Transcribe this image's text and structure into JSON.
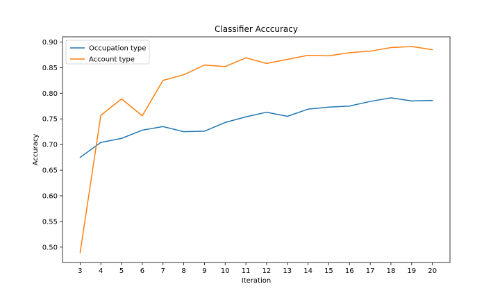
{
  "chart_data": {
    "type": "line",
    "title": "Classifier Acccuracy",
    "xlabel": "Iteration",
    "ylabel": "Accuracy",
    "x": [
      3,
      4,
      5,
      6,
      7,
      8,
      9,
      10,
      11,
      12,
      13,
      14,
      15,
      16,
      17,
      18,
      19,
      20
    ],
    "xlim": [
      2.15,
      20.85
    ],
    "ylim": [
      0.47,
      0.91
    ],
    "xticks": [
      3,
      4,
      5,
      6,
      7,
      8,
      9,
      10,
      11,
      12,
      13,
      14,
      15,
      16,
      17,
      18,
      19,
      20
    ],
    "yticks": [
      0.5,
      0.55,
      0.6,
      0.65,
      0.7,
      0.75,
      0.8,
      0.85,
      0.9
    ],
    "grid": false,
    "legend_position": "top-left",
    "series": [
      {
        "name": "Occupation type",
        "color": "#1f77b4",
        "values": [
          0.675,
          0.704,
          0.712,
          0.728,
          0.735,
          0.725,
          0.726,
          0.743,
          0.754,
          0.763,
          0.755,
          0.769,
          0.773,
          0.775,
          0.784,
          0.791,
          0.785,
          0.786
        ]
      },
      {
        "name": "Account type",
        "color": "#ff7f0e",
        "values": [
          0.489,
          0.757,
          0.789,
          0.756,
          0.825,
          0.836,
          0.855,
          0.852,
          0.869,
          0.858,
          0.866,
          0.874,
          0.873,
          0.879,
          0.882,
          0.889,
          0.891,
          0.885
        ]
      }
    ]
  }
}
